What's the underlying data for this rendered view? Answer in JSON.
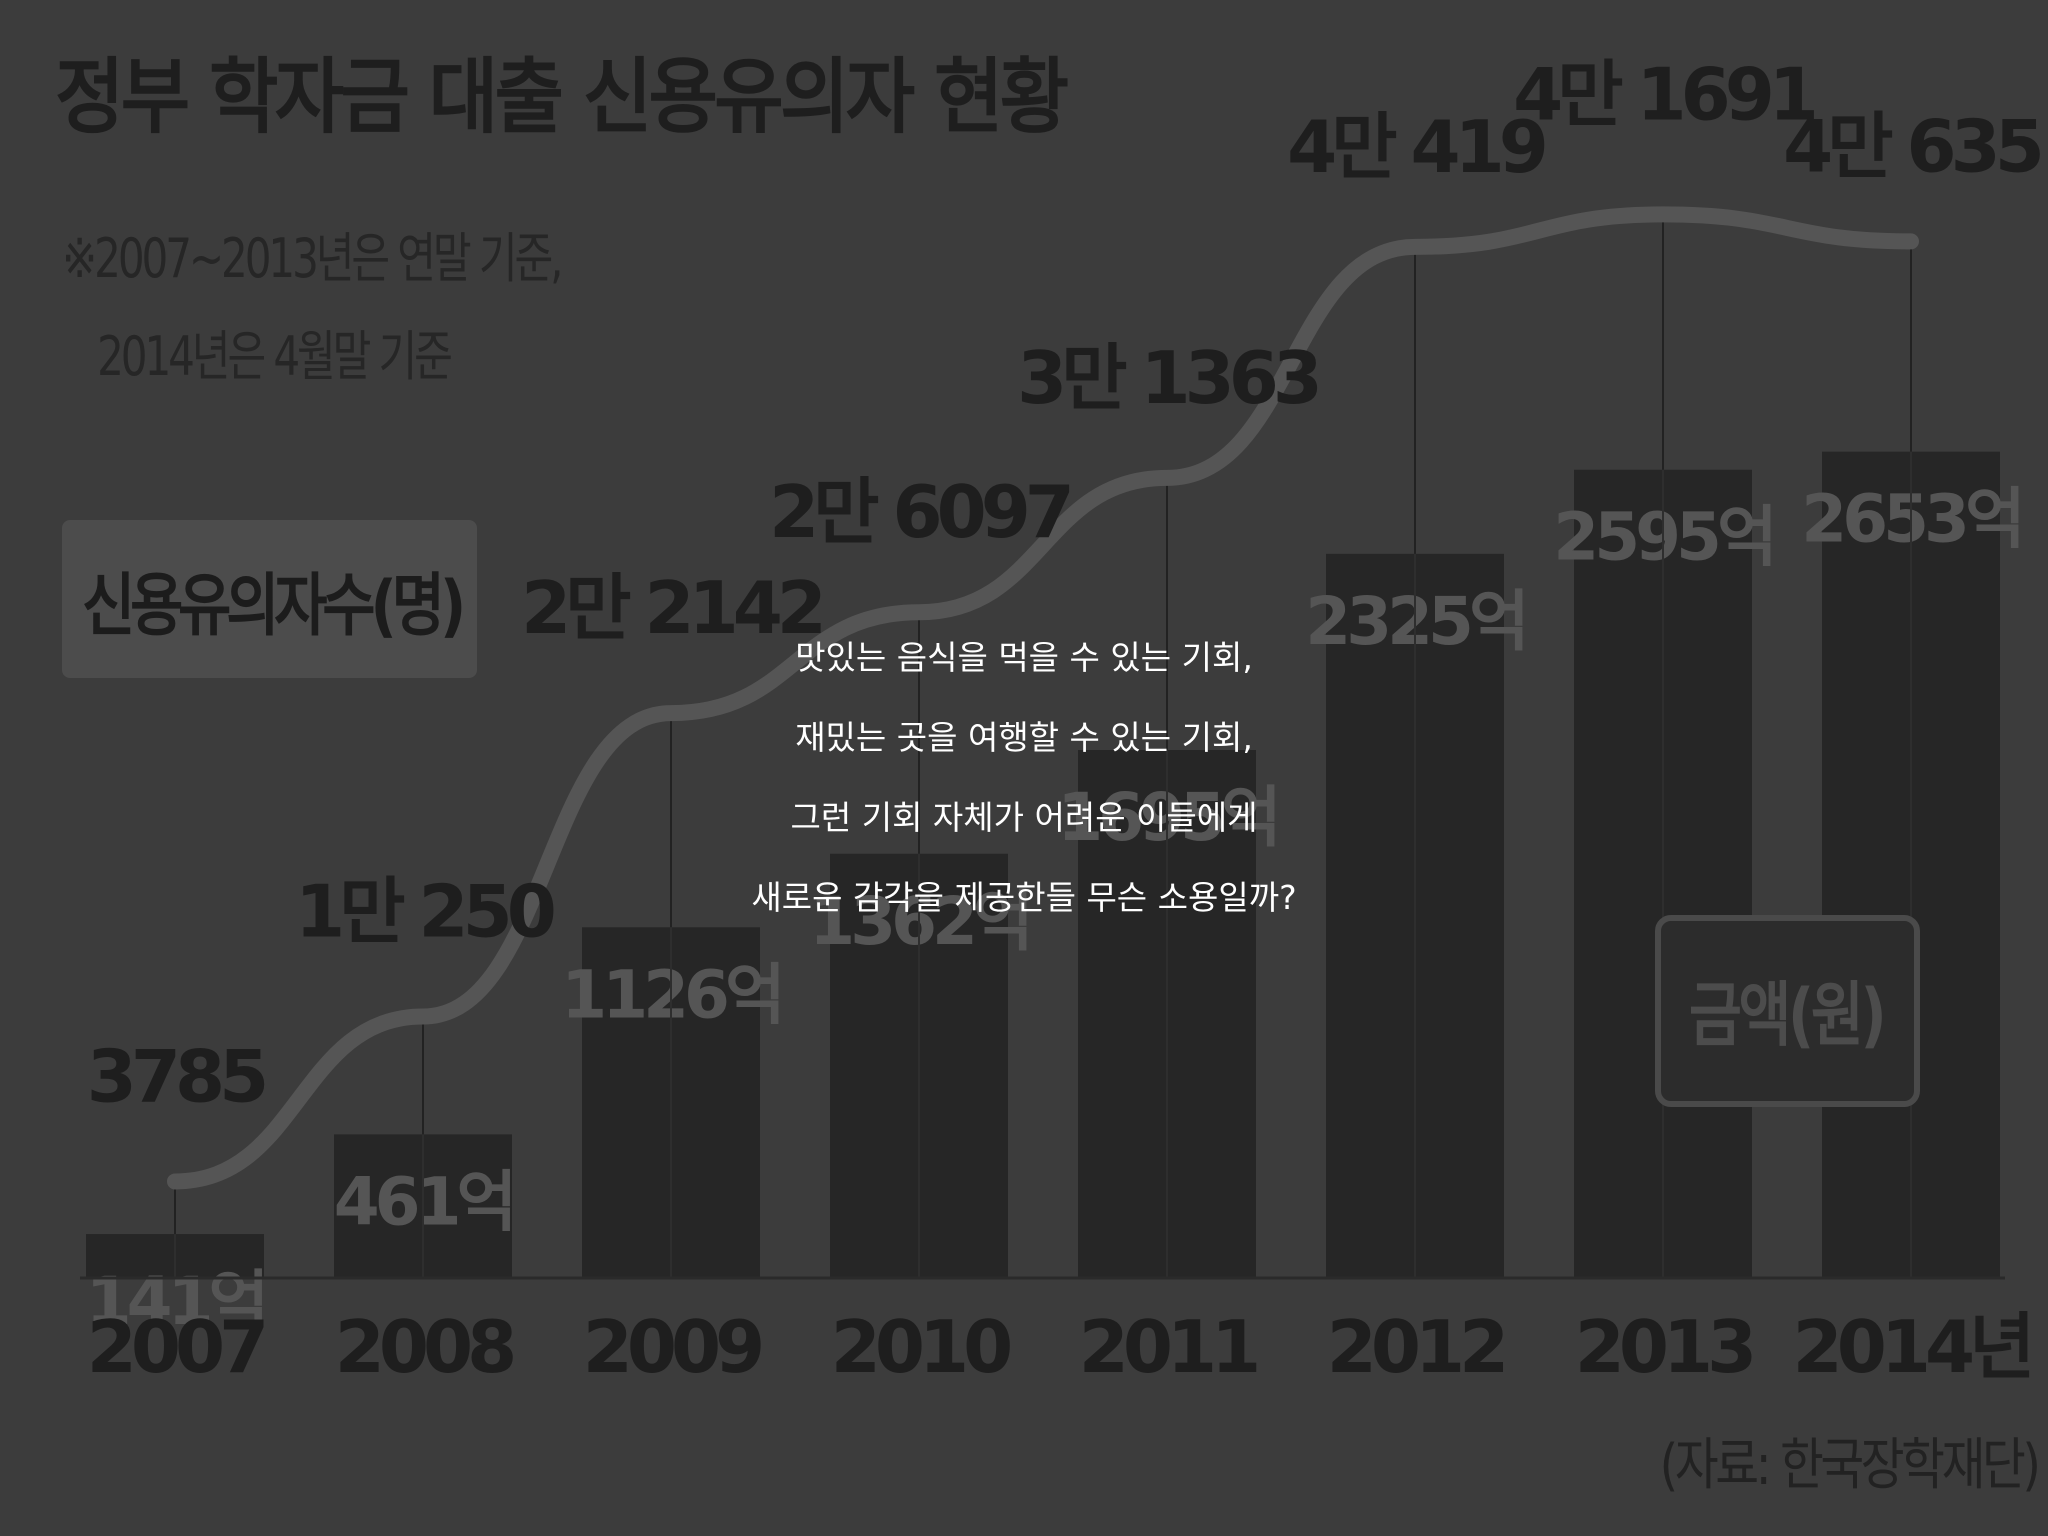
{
  "header": {
    "title": "정부 학자금 대출 신용유의자 현황",
    "note_line1": "※2007~2013년은 연말 기준,",
    "note_line2": "2014년은 4월말 기준"
  },
  "legend": {
    "count_label": "신용유의자수(명)",
    "amount_label": "금액(원)"
  },
  "source": "(자료: 한국장학재단)",
  "overlay_text": {
    "line1": "맛있는 음식을 먹을 수 있는 기회,",
    "line2": "재밌는 곳을 여행할 수 있는 기회,",
    "line3": "그런 기회 자체가 어려운 이들에게",
    "line4": "새로운 감각을 제공한들 무슨 소용일까?"
  },
  "colors": {
    "background": "#3c3c3c",
    "bar": "#262626",
    "line": "#555555",
    "text_dark": "#1e1e1e",
    "bar_label": "#555555",
    "overlay_text": "#ffffff"
  },
  "chart_data": {
    "type": "bar",
    "categories": [
      "2007",
      "2008",
      "2009",
      "2010",
      "2011",
      "2012",
      "2013",
      "2014년"
    ],
    "series": [
      {
        "name": "금액(원)",
        "type": "bar",
        "values": [
          141,
          461,
          1126,
          1362,
          1695,
          2325,
          2595,
          2653
        ],
        "labels": [
          "141억",
          "461억",
          "1126억",
          "1362억",
          "1695억",
          "2325억",
          "2595억",
          "2653억"
        ]
      },
      {
        "name": "신용유의자수(명)",
        "type": "line",
        "values": [
          3785,
          10250,
          22142,
          26097,
          31363,
          40419,
          41691,
          40635
        ],
        "labels": [
          "3785",
          "1만 250",
          "2만 2142",
          "2만 6097",
          "3만 1363",
          "4만 419",
          "4만 1691",
          "4만 635"
        ]
      }
    ],
    "bar_ylim": [
      0,
      3050
    ],
    "line_ylim": [
      0,
      45000
    ]
  }
}
